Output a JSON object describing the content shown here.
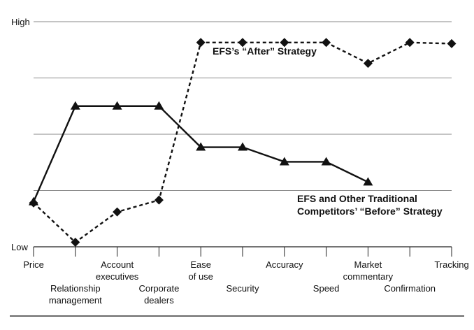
{
  "chart_data": {
    "type": "line",
    "y_labels": {
      "high": "High",
      "low": "Low"
    },
    "ylim": [
      0,
      4
    ],
    "grid": true,
    "categories": [
      [
        "Price"
      ],
      [
        "Relationship",
        "management"
      ],
      [
        "Account",
        "executives"
      ],
      [
        "Corporate",
        "dealers"
      ],
      [
        "Ease",
        "of use"
      ],
      [
        "Security"
      ],
      [
        "Accuracy"
      ],
      [
        "Speed"
      ],
      [
        "Market",
        "commentary"
      ],
      [
        "Confirmation"
      ],
      [
        "Tracking"
      ]
    ],
    "series": [
      {
        "name": "EFS and Other Traditional Competitors’ “Before” Strategy",
        "label_lines": [
          "EFS and Other Traditional",
          "Competitors’ “Before” Strategy"
        ],
        "style": "solid",
        "marker": "triangle",
        "values": [
          0.8,
          2.5,
          2.5,
          2.5,
          1.77,
          1.77,
          1.51,
          1.51,
          1.15,
          null,
          null
        ]
      },
      {
        "name": "EFS’s “After” Strategy",
        "label_lines": [
          "EFS’s “After” Strategy"
        ],
        "style": "dashed",
        "marker": "diamond",
        "values": [
          0.78,
          0.08,
          0.62,
          0.83,
          3.63,
          3.63,
          3.63,
          3.63,
          3.26,
          3.63,
          3.61
        ]
      }
    ]
  }
}
